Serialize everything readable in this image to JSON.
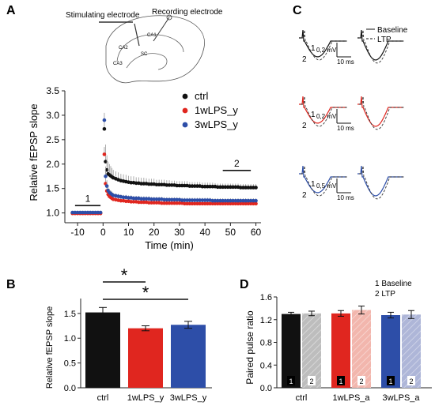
{
  "colors": {
    "ctrl": "#111111",
    "y1w": "#e0261f",
    "y3w": "#2d4ea8",
    "ctrl_ltp": "#bdbdbd",
    "y1w_ltp": "#f2b6ad",
    "y3w_ltp": "#aeb6d8"
  },
  "panels": {
    "A": "A",
    "B": "B",
    "C": "C",
    "D": "D"
  },
  "schematic": {
    "stim_label": "Stimulating electrode",
    "rec_label": "Recording electrode",
    "ca1": "CA1",
    "ca2": "CA2",
    "ca3": "CA3",
    "sc": "SC"
  },
  "traces": {
    "legend_baseline": "Baseline",
    "legend_ltp": "LTP",
    "rows": [
      {
        "color_key": "ctrl",
        "n1": "1",
        "n2": "2",
        "amp": "0,2 mV",
        "time": "10 ms"
      },
      {
        "color_key": "y1w",
        "n1": "1",
        "n2": "2",
        "amp": "0,2 mV",
        "time": "10 ms"
      },
      {
        "color_key": "y3w",
        "n1": "1",
        "n2": "2",
        "amp": "0,5 mV",
        "time": "10 ms"
      }
    ]
  },
  "chart_data": [
    {
      "panel": "A",
      "type": "scatter",
      "xlabel": "Time (min)",
      "ylabel": "Relative fEPSP slope",
      "xlim": [
        -15,
        62
      ],
      "ylim": [
        0.8,
        3.5
      ],
      "xticks": [
        "-10",
        "0",
        "10",
        "20",
        "30",
        "40",
        "50",
        "60"
      ],
      "yticks": [
        "1.0",
        "1.5",
        "2.0",
        "2.5",
        "3.0",
        "3.5"
      ],
      "legend": "top-right",
      "annotations": [
        {
          "text": "1",
          "x_from": -11,
          "x_to": -1,
          "y": 1.15
        },
        {
          "text": "2",
          "x_from": 47,
          "x_to": 58,
          "y": 1.87
        }
      ],
      "baseline_x": [
        -12,
        -11,
        -10,
        -9,
        -8,
        -7,
        -6,
        -5,
        -4,
        -3,
        -2,
        -1
      ],
      "series": [
        {
          "name": "ctrl",
          "color_key": "ctrl",
          "baseline": 1.0,
          "x": [
            0.5,
            1,
            1.5,
            2,
            2.5,
            3,
            3.5,
            4,
            5,
            6,
            7,
            8,
            9,
            10,
            11,
            12,
            13,
            14,
            15,
            16,
            17,
            18,
            19,
            20,
            21,
            22,
            23,
            24,
            25,
            26,
            27,
            28,
            29,
            30,
            31,
            32,
            33,
            34,
            35,
            36,
            37,
            38,
            39,
            40,
            41,
            42,
            43,
            44,
            45,
            46,
            47,
            48,
            49,
            50,
            51,
            52,
            53,
            54,
            55,
            56,
            57,
            58,
            59,
            60
          ],
          "y": [
            2.72,
            2.05,
            1.88,
            1.8,
            1.78,
            1.76,
            1.74,
            1.72,
            1.7,
            1.68,
            1.66,
            1.65,
            1.64,
            1.63,
            1.62,
            1.62,
            1.61,
            1.61,
            1.6,
            1.6,
            1.6,
            1.59,
            1.59,
            1.59,
            1.58,
            1.58,
            1.58,
            1.58,
            1.57,
            1.57,
            1.57,
            1.57,
            1.56,
            1.56,
            1.56,
            1.56,
            1.56,
            1.55,
            1.55,
            1.55,
            1.55,
            1.55,
            1.54,
            1.54,
            1.54,
            1.54,
            1.54,
            1.54,
            1.53,
            1.53,
            1.53,
            1.53,
            1.53,
            1.53,
            1.53,
            1.53,
            1.53,
            1.52,
            1.52,
            1.52,
            1.52,
            1.52,
            1.52,
            1.52
          ],
          "err": [
            0.2,
            0.35,
            0.3,
            0.25,
            0.22,
            0.2,
            0.18,
            0.16,
            0.15,
            0.15,
            0.14,
            0.14,
            0.14,
            0.13,
            0.13,
            0.13,
            0.12,
            0.12,
            0.12,
            0.12,
            0.11,
            0.11,
            0.11,
            0.11,
            0.1,
            0.1,
            0.1,
            0.1,
            0.1,
            0.1,
            0.09,
            0.09,
            0.09,
            0.09,
            0.09,
            0.09,
            0.09,
            0.08,
            0.08,
            0.08,
            0.08,
            0.08,
            0.08,
            0.08,
            0.08,
            0.08,
            0.08,
            0.07,
            0.07,
            0.07,
            0.07,
            0.07,
            0.07,
            0.07,
            0.07,
            0.07,
            0.07,
            0.07,
            0.07,
            0.07,
            0.07,
            0.07,
            0.07,
            0.07
          ]
        },
        {
          "name": "1wLPS_y",
          "color_key": "y1w",
          "baseline": 0.99,
          "x": [
            0.5,
            1,
            1.5,
            2,
            2.5,
            3,
            3.5,
            4,
            5,
            6,
            7,
            8,
            9,
            10,
            11,
            12,
            13,
            14,
            15,
            16,
            17,
            18,
            19,
            20,
            21,
            22,
            23,
            24,
            25,
            26,
            27,
            28,
            29,
            30,
            31,
            32,
            33,
            34,
            35,
            36,
            37,
            38,
            39,
            40,
            41,
            42,
            43,
            44,
            45,
            46,
            47,
            48,
            49,
            50,
            51,
            52,
            53,
            54,
            55,
            56,
            57,
            58,
            59,
            60
          ],
          "y": [
            2.2,
            1.6,
            1.45,
            1.38,
            1.34,
            1.32,
            1.3,
            1.28,
            1.27,
            1.26,
            1.25,
            1.25,
            1.24,
            1.24,
            1.23,
            1.23,
            1.23,
            1.22,
            1.22,
            1.22,
            1.22,
            1.21,
            1.21,
            1.21,
            1.21,
            1.21,
            1.2,
            1.2,
            1.2,
            1.2,
            1.2,
            1.2,
            1.2,
            1.2,
            1.2,
            1.19,
            1.19,
            1.19,
            1.19,
            1.19,
            1.19,
            1.19,
            1.19,
            1.19,
            1.19,
            1.19,
            1.19,
            1.19,
            1.19,
            1.19,
            1.19,
            1.19,
            1.19,
            1.19,
            1.19,
            1.19,
            1.19,
            1.19,
            1.19,
            1.19,
            1.19,
            1.19,
            1.19,
            1.19
          ],
          "err": [
            0.15,
            0.25,
            0.15,
            0.1,
            0.08,
            0.07,
            0.06,
            0.05,
            0.05,
            0.05,
            0.04,
            0.04,
            0.04,
            0.04,
            0.04,
            0.04,
            0.04,
            0.04,
            0.04,
            0.04,
            0.04,
            0.04,
            0.04,
            0.04,
            0.04,
            0.04,
            0.04,
            0.04,
            0.04,
            0.04,
            0.04,
            0.04,
            0.04,
            0.04,
            0.04,
            0.04,
            0.04,
            0.04,
            0.04,
            0.04,
            0.04,
            0.04,
            0.04,
            0.04,
            0.04,
            0.04,
            0.04,
            0.04,
            0.04,
            0.04,
            0.04,
            0.04,
            0.04,
            0.04,
            0.04,
            0.04,
            0.04,
            0.04,
            0.04,
            0.04,
            0.04,
            0.04,
            0.04,
            0.04
          ]
        },
        {
          "name": "3wLPS_y",
          "color_key": "y3w",
          "baseline": 1.01,
          "x": [
            0.5,
            1,
            1.5,
            2,
            2.5,
            3,
            3.5,
            4,
            5,
            6,
            7,
            8,
            9,
            10,
            11,
            12,
            13,
            14,
            15,
            16,
            17,
            18,
            19,
            20,
            21,
            22,
            23,
            24,
            25,
            26,
            27,
            28,
            29,
            30,
            31,
            32,
            33,
            34,
            35,
            36,
            37,
            38,
            39,
            40,
            41,
            42,
            43,
            44,
            45,
            46,
            47,
            48,
            49,
            50,
            51,
            52,
            53,
            54,
            55,
            56,
            57,
            58,
            59,
            60
          ],
          "y": [
            2.9,
            1.75,
            1.55,
            1.46,
            1.42,
            1.4,
            1.38,
            1.36,
            1.35,
            1.34,
            1.33,
            1.32,
            1.32,
            1.31,
            1.31,
            1.3,
            1.3,
            1.3,
            1.29,
            1.29,
            1.29,
            1.29,
            1.28,
            1.28,
            1.28,
            1.28,
            1.28,
            1.27,
            1.27,
            1.27,
            1.27,
            1.27,
            1.27,
            1.27,
            1.26,
            1.26,
            1.26,
            1.26,
            1.26,
            1.26,
            1.26,
            1.26,
            1.26,
            1.26,
            1.26,
            1.26,
            1.25,
            1.25,
            1.25,
            1.25,
            1.25,
            1.25,
            1.25,
            1.25,
            1.25,
            1.25,
            1.25,
            1.25,
            1.25,
            1.25,
            1.25,
            1.25,
            1.25,
            1.25
          ],
          "err": [
            0.15,
            0.2,
            0.12,
            0.08,
            0.07,
            0.06,
            0.06,
            0.05,
            0.05,
            0.05,
            0.05,
            0.05,
            0.05,
            0.05,
            0.05,
            0.05,
            0.05,
            0.05,
            0.05,
            0.05,
            0.05,
            0.05,
            0.05,
            0.05,
            0.05,
            0.05,
            0.05,
            0.05,
            0.05,
            0.05,
            0.05,
            0.05,
            0.05,
            0.05,
            0.05,
            0.05,
            0.05,
            0.05,
            0.05,
            0.05,
            0.05,
            0.05,
            0.05,
            0.05,
            0.05,
            0.05,
            0.05,
            0.05,
            0.05,
            0.05,
            0.05,
            0.05,
            0.05,
            0.05,
            0.05,
            0.05,
            0.05,
            0.05,
            0.05,
            0.05,
            0.05,
            0.05,
            0.05,
            0.05
          ]
        }
      ]
    },
    {
      "panel": "B",
      "type": "bar",
      "ylabel": "Relative fEPSP slope",
      "ylim": [
        0,
        1.8
      ],
      "yticks": [
        "0.0",
        "0.5",
        "1.0",
        "1.5"
      ],
      "categories": [
        "ctrl",
        "1wLPS_y",
        "3wLPS_y"
      ],
      "values": [
        1.52,
        1.2,
        1.27
      ],
      "errors": [
        0.1,
        0.05,
        0.07
      ],
      "color_keys": [
        "ctrl",
        "y1w",
        "y3w"
      ],
      "significance": [
        {
          "from": 0,
          "to": 1,
          "label": "*"
        },
        {
          "from": 0,
          "to": 2,
          "label": "*"
        }
      ]
    },
    {
      "panel": "D",
      "type": "bar",
      "ylabel": "Paired pulse ratio",
      "ylim": [
        0,
        1.6
      ],
      "yticks": [
        "0.0",
        "0.4",
        "0.8",
        "1.2",
        "1.6"
      ],
      "categories": [
        "ctrl",
        "1wLPS_a",
        "3wLPS_a"
      ],
      "legend_lines": [
        "1 Baseline",
        "2 LTP"
      ],
      "bar_tags": [
        "1",
        "2"
      ],
      "series": [
        {
          "name": "Baseline",
          "values": [
            1.3,
            1.31,
            1.28
          ],
          "errors": [
            0.03,
            0.05,
            0.05
          ],
          "color_keys": [
            "ctrl",
            "y1w",
            "y3w"
          ]
        },
        {
          "name": "LTP",
          "values": [
            1.31,
            1.37,
            1.29
          ],
          "errors": [
            0.04,
            0.07,
            0.07
          ],
          "color_keys": [
            "ctrl_ltp",
            "y1w_ltp",
            "y3w_ltp"
          ]
        }
      ]
    }
  ]
}
